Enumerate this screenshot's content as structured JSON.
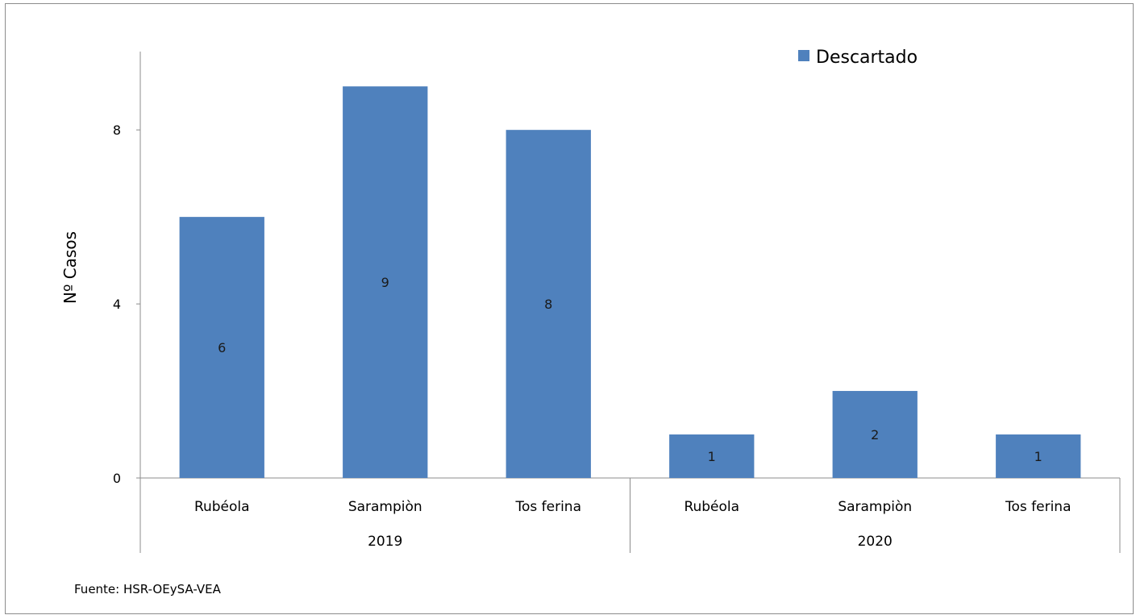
{
  "chart_data": {
    "type": "bar",
    "ylabel": "Nº Casos",
    "ylim": [
      0,
      9.8
    ],
    "yticks": [
      0,
      4,
      8
    ],
    "grid": false,
    "legend_position": "top-right",
    "series": [
      {
        "name": "Descartado",
        "color": "#4f81bd"
      }
    ],
    "groups": [
      {
        "label": "2019",
        "categories": [
          "Rubéola",
          "Sarampiòn",
          "Tos ferina"
        ],
        "values": [
          6,
          9,
          8
        ]
      },
      {
        "label": "2020",
        "categories": [
          "Rubéola",
          "Sarampiòn",
          "Tos ferina"
        ],
        "values": [
          1,
          2,
          1
        ]
      }
    ]
  },
  "source_note": "Fuente:  HSR-OEySA-VEA"
}
